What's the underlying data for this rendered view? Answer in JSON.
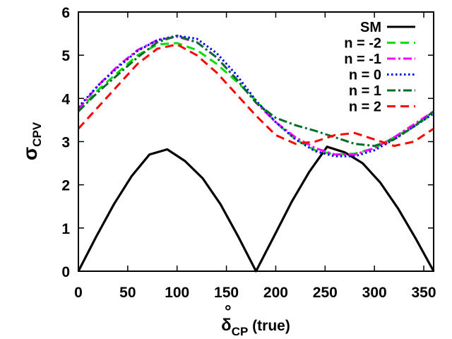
{
  "chart_data": {
    "type": "line",
    "title": "",
    "xlabel": {
      "main": "δ",
      "sup": "°",
      "sub": "CP",
      "suffix": " (true)"
    },
    "ylabel": {
      "main": "σ",
      "sub": "CPV"
    },
    "xlim": [
      0,
      360
    ],
    "ylim": [
      0,
      6
    ],
    "xticks": [
      0,
      50,
      100,
      150,
      200,
      250,
      300,
      350
    ],
    "yticks": [
      0,
      1,
      2,
      3,
      4,
      5,
      6
    ],
    "grid": false,
    "legend_position": "top-right",
    "series": [
      {
        "name": "SM",
        "color": "#000000",
        "dash": "solid",
        "x": [
          0,
          18,
          36,
          54,
          72,
          90,
          108,
          126,
          144,
          162,
          180,
          198,
          216,
          234,
          252,
          270,
          288,
          306,
          324,
          342,
          360
        ],
        "y": [
          0.0,
          0.8,
          1.55,
          2.2,
          2.7,
          2.82,
          2.55,
          2.15,
          1.55,
          0.8,
          0.0,
          0.8,
          1.6,
          2.3,
          2.88,
          2.75,
          2.5,
          2.05,
          1.45,
          0.75,
          0.0
        ]
      },
      {
        "name": "n = -2",
        "color": "#00dd00",
        "dash": "dashed",
        "x": [
          0,
          20,
          40,
          60,
          80,
          100,
          120,
          140,
          160,
          180,
          200,
          220,
          240,
          260,
          280,
          300,
          320,
          340,
          360
        ],
        "y": [
          3.7,
          4.2,
          4.6,
          5.0,
          5.25,
          5.28,
          5.12,
          4.8,
          4.4,
          3.95,
          3.45,
          3.05,
          2.8,
          2.7,
          2.72,
          2.85,
          3.1,
          3.35,
          3.65
        ]
      },
      {
        "name": "n = -1",
        "color": "#ff00ff",
        "dash": "dashdot",
        "x": [
          0,
          20,
          40,
          60,
          80,
          100,
          120,
          140,
          160,
          180,
          200,
          220,
          240,
          260,
          280,
          300,
          320,
          340,
          360
        ],
        "y": [
          3.75,
          4.3,
          4.75,
          5.12,
          5.35,
          5.43,
          5.3,
          4.95,
          4.45,
          3.9,
          3.45,
          3.1,
          2.85,
          2.7,
          2.7,
          2.85,
          3.1,
          3.4,
          3.7
        ]
      },
      {
        "name": "n = 0",
        "color": "#0000ff",
        "dash": "dotted",
        "x": [
          0,
          20,
          40,
          60,
          80,
          100,
          120,
          140,
          160,
          180,
          200,
          220,
          240,
          260,
          280,
          300,
          320,
          340,
          360
        ],
        "y": [
          3.8,
          4.3,
          4.72,
          5.1,
          5.35,
          5.45,
          5.38,
          5.05,
          4.55,
          3.95,
          3.45,
          3.05,
          2.78,
          2.66,
          2.66,
          2.8,
          3.05,
          3.35,
          3.65
        ]
      },
      {
        "name": "n = 1",
        "color": "#006d28",
        "dash": "dashdot",
        "x": [
          0,
          20,
          40,
          60,
          80,
          100,
          120,
          140,
          160,
          180,
          200,
          220,
          240,
          260,
          280,
          300,
          320,
          340,
          360
        ],
        "y": [
          3.7,
          4.15,
          4.55,
          4.95,
          5.3,
          5.45,
          5.3,
          4.95,
          4.45,
          3.9,
          3.55,
          3.38,
          3.25,
          3.1,
          2.95,
          2.9,
          3.05,
          3.35,
          3.7
        ]
      },
      {
        "name": "n = 2",
        "color": "#ff0000",
        "dash": "dashed",
        "x": [
          0,
          20,
          40,
          60,
          80,
          100,
          120,
          140,
          160,
          180,
          200,
          220,
          240,
          260,
          280,
          300,
          320,
          340,
          360
        ],
        "y": [
          3.3,
          3.8,
          4.3,
          4.8,
          5.15,
          5.25,
          5.0,
          4.6,
          4.1,
          3.6,
          3.15,
          2.95,
          3.0,
          3.15,
          3.2,
          3.05,
          2.9,
          3.0,
          3.3
        ]
      }
    ]
  }
}
